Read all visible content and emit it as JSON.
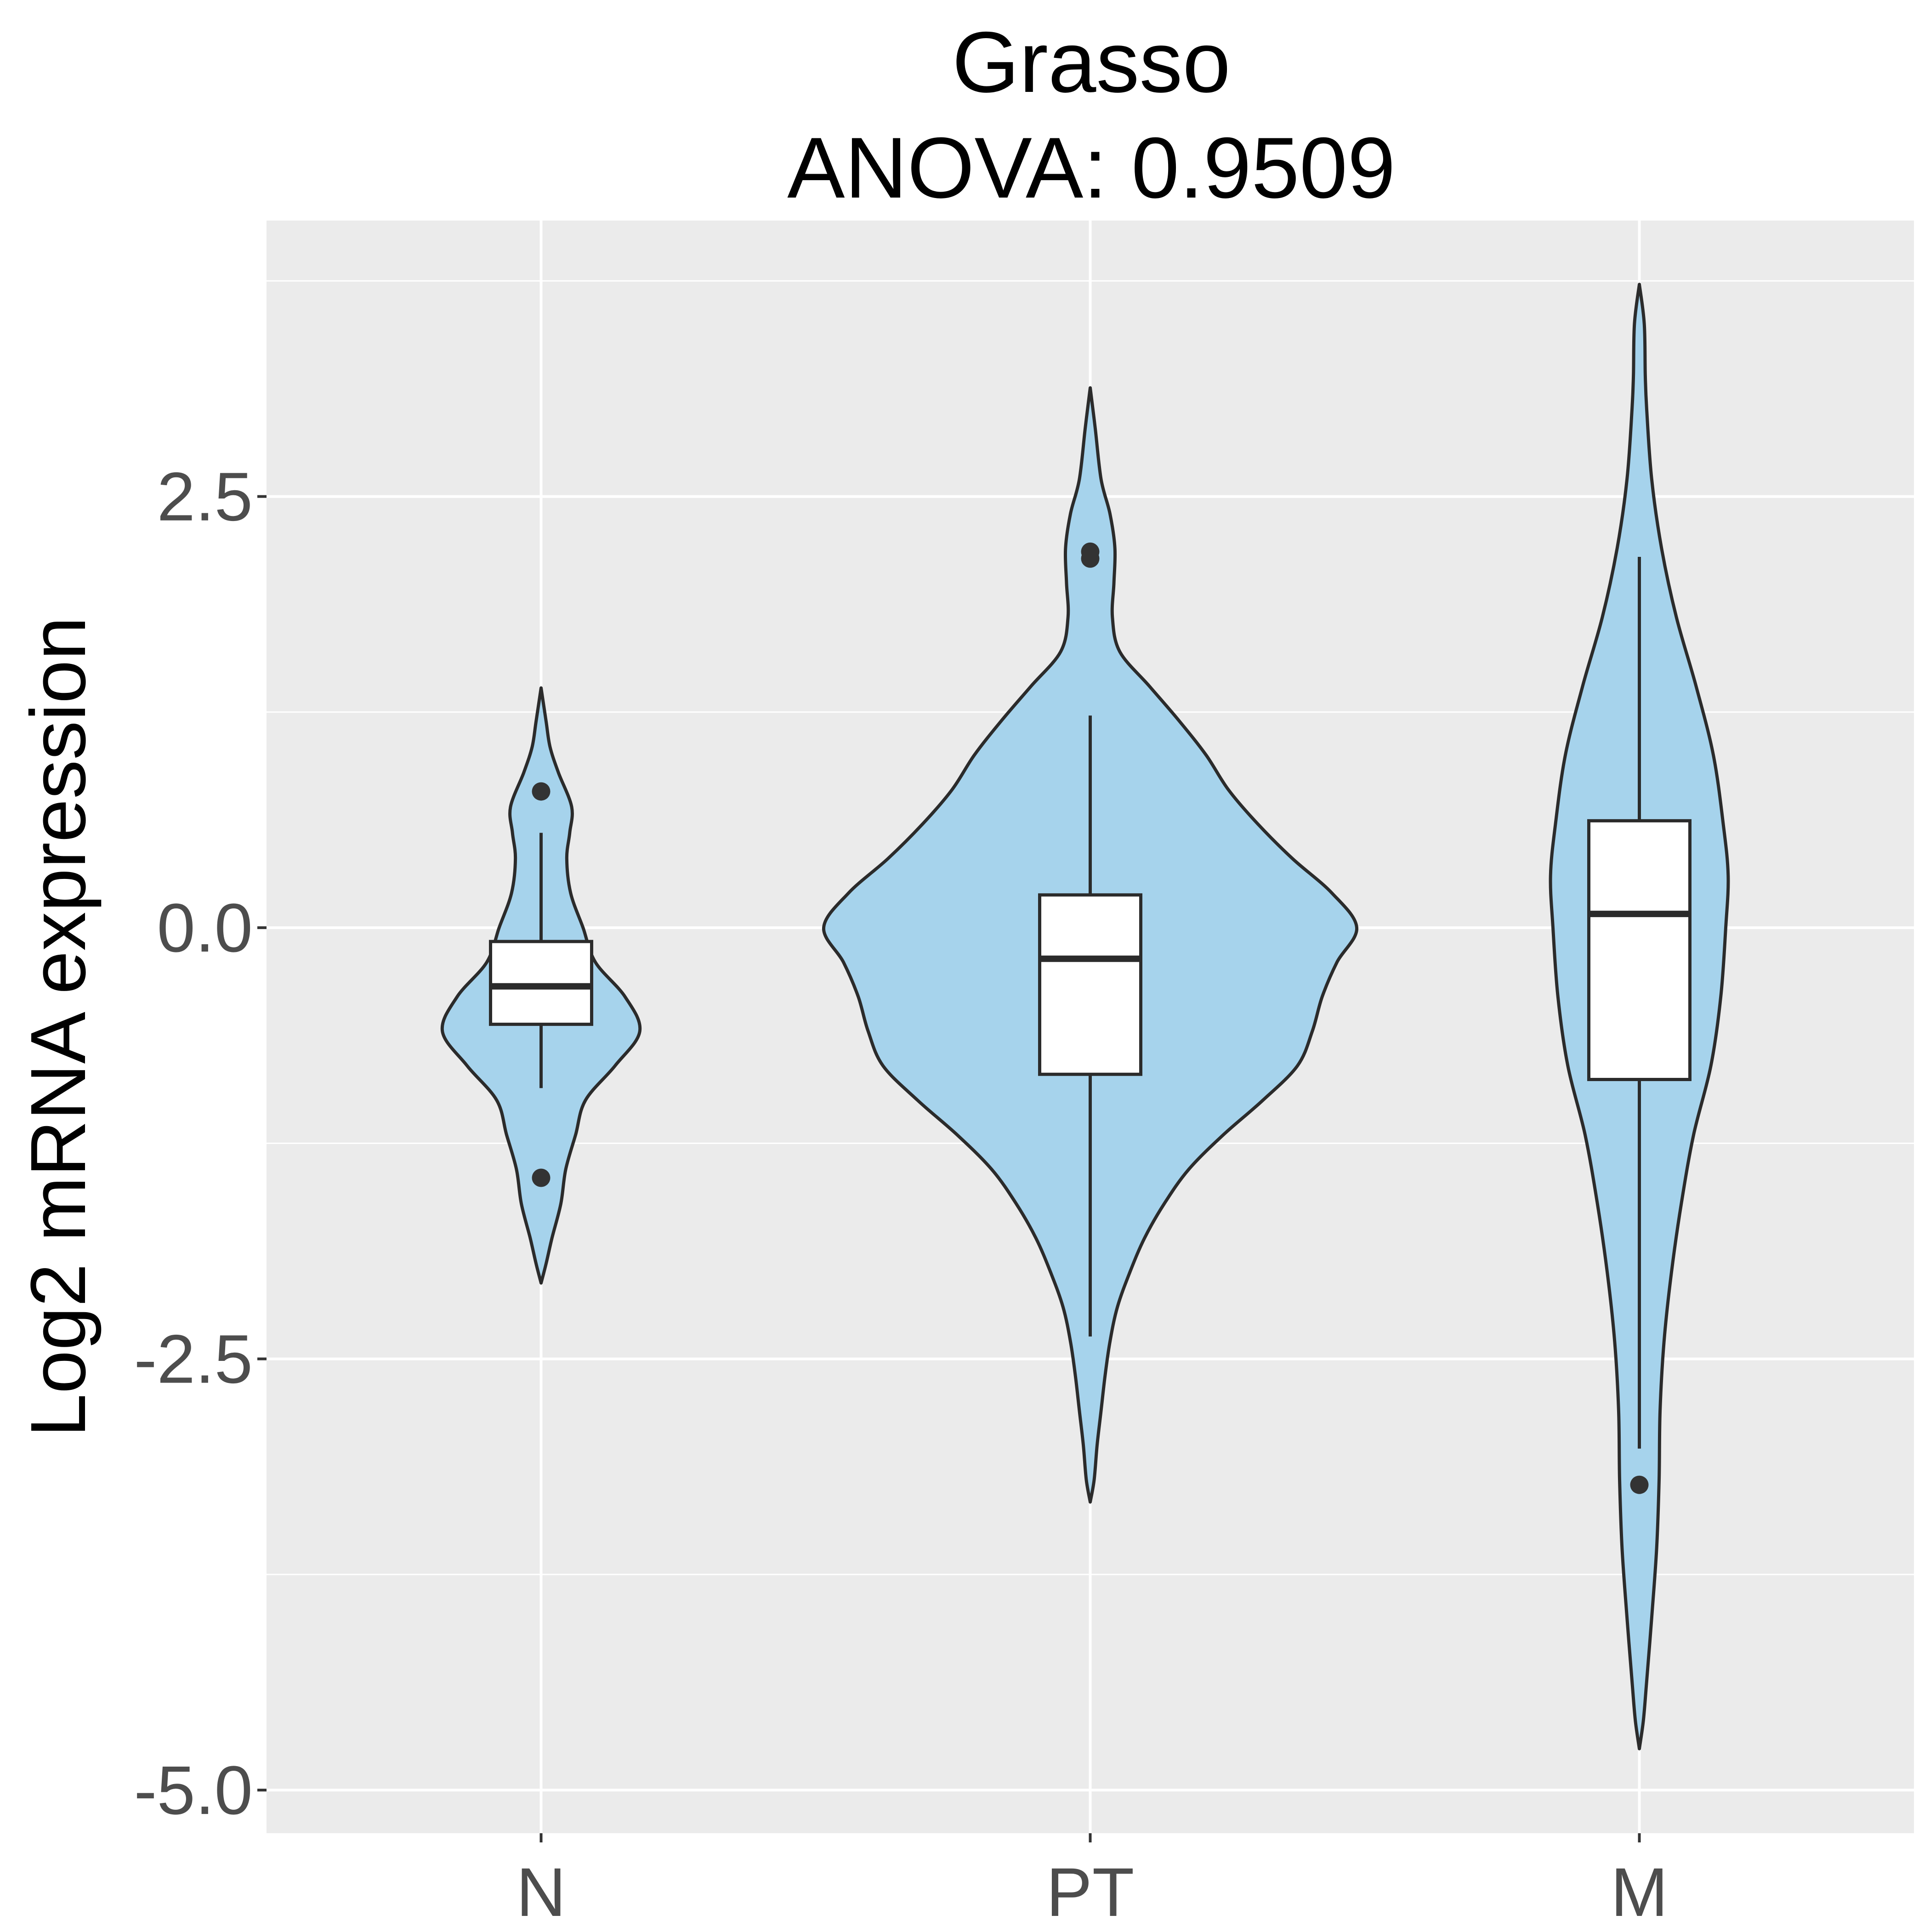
{
  "chart_data": {
    "type": "violin",
    "title": "Grasso",
    "subtitle": "ANOVA: 0.9509",
    "xlabel": "",
    "ylabel": "Log2 mRNA expression",
    "categories": [
      "N",
      "PT",
      "M"
    ],
    "ylim": [
      -5.25,
      4.1
    ],
    "y_ticks": [
      2.5,
      0.0,
      -2.5,
      -5.0
    ],
    "y_tick_labels": [
      "2.5",
      "0.0",
      "-2.5",
      "-5.0"
    ],
    "y_minor_ticks": [
      3.75,
      1.25,
      -1.25,
      -3.75
    ],
    "grid": true,
    "colors": {
      "violin_fill": "#a6d3ec",
      "violin_stroke": "#2b2b2b",
      "panel_background": "#ebebeb",
      "grid": "#ffffff",
      "box_fill": "#ffffff"
    },
    "series": [
      {
        "category": "N",
        "box": {
          "q1": -0.56,
          "median": -0.34,
          "q3": -0.08,
          "whisker_low": -0.93,
          "whisker_high": 0.55
        },
        "outliers": [
          0.79,
          -1.45
        ],
        "violin_profile": [
          [
            1.39,
            0.0
          ],
          [
            1.2,
            0.01
          ],
          [
            1.05,
            0.018
          ],
          [
            0.9,
            0.035
          ],
          [
            0.7,
            0.062
          ],
          [
            0.55,
            0.058
          ],
          [
            0.4,
            0.052
          ],
          [
            0.2,
            0.06
          ],
          [
            0.0,
            0.085
          ],
          [
            -0.2,
            0.11
          ],
          [
            -0.4,
            0.17
          ],
          [
            -0.6,
            0.2
          ],
          [
            -0.8,
            0.15
          ],
          [
            -1.0,
            0.09
          ],
          [
            -1.2,
            0.07
          ],
          [
            -1.4,
            0.05
          ],
          [
            -1.6,
            0.04
          ],
          [
            -1.8,
            0.022
          ],
          [
            -1.95,
            0.01
          ],
          [
            -2.06,
            0.0
          ]
        ]
      },
      {
        "category": "PT",
        "box": {
          "q1": -0.85,
          "median": -0.18,
          "q3": 0.19,
          "whisker_low": -2.37,
          "whisker_high": 1.23
        },
        "outliers": [
          2.18,
          2.14
        ],
        "violin_profile": [
          [
            3.13,
            0.0
          ],
          [
            2.9,
            0.01
          ],
          [
            2.6,
            0.022
          ],
          [
            2.4,
            0.04
          ],
          [
            2.2,
            0.05
          ],
          [
            2.0,
            0.048
          ],
          [
            1.8,
            0.045
          ],
          [
            1.6,
            0.06
          ],
          [
            1.4,
            0.12
          ],
          [
            1.2,
            0.18
          ],
          [
            1.0,
            0.235
          ],
          [
            0.8,
            0.28
          ],
          [
            0.6,
            0.34
          ],
          [
            0.4,
            0.41
          ],
          [
            0.2,
            0.49
          ],
          [
            0.0,
            0.54
          ],
          [
            -0.2,
            0.5
          ],
          [
            -0.4,
            0.47
          ],
          [
            -0.6,
            0.45
          ],
          [
            -0.8,
            0.42
          ],
          [
            -1.0,
            0.35
          ],
          [
            -1.2,
            0.27
          ],
          [
            -1.4,
            0.2
          ],
          [
            -1.6,
            0.15
          ],
          [
            -1.8,
            0.11
          ],
          [
            -2.0,
            0.08
          ],
          [
            -2.2,
            0.055
          ],
          [
            -2.4,
            0.04
          ],
          [
            -2.6,
            0.03
          ],
          [
            -2.8,
            0.022
          ],
          [
            -3.0,
            0.014
          ],
          [
            -3.2,
            0.008
          ],
          [
            -3.33,
            0.0
          ]
        ]
      },
      {
        "category": "M",
        "box": {
          "q1": -0.88,
          "median": 0.08,
          "q3": 0.62,
          "whisker_low": -3.02,
          "whisker_high": 2.15
        },
        "outliers": [
          -3.23
        ],
        "violin_profile": [
          [
            3.73,
            0.0
          ],
          [
            3.5,
            0.01
          ],
          [
            3.2,
            0.012
          ],
          [
            3.0,
            0.015
          ],
          [
            2.6,
            0.025
          ],
          [
            2.2,
            0.045
          ],
          [
            1.8,
            0.075
          ],
          [
            1.4,
            0.115
          ],
          [
            1.0,
            0.15
          ],
          [
            0.6,
            0.17
          ],
          [
            0.3,
            0.18
          ],
          [
            0.0,
            0.175
          ],
          [
            -0.4,
            0.165
          ],
          [
            -0.8,
            0.145
          ],
          [
            -1.2,
            0.11
          ],
          [
            -1.6,
            0.085
          ],
          [
            -2.0,
            0.065
          ],
          [
            -2.4,
            0.05
          ],
          [
            -2.8,
            0.042
          ],
          [
            -3.2,
            0.04
          ],
          [
            -3.6,
            0.035
          ],
          [
            -4.0,
            0.025
          ],
          [
            -4.4,
            0.014
          ],
          [
            -4.6,
            0.008
          ],
          [
            -4.76,
            0.0
          ]
        ]
      }
    ]
  }
}
